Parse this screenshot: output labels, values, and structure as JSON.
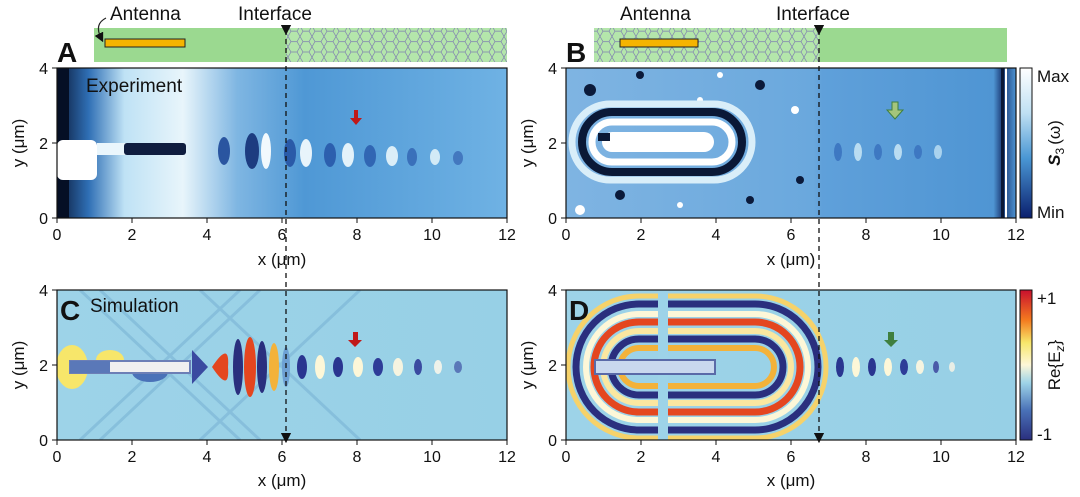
{
  "figure": {
    "panels": {
      "A": {
        "letter": "A",
        "title": "Experiment",
        "xlabel": "x (μm)",
        "ylabel": "y (μm)",
        "xticks": [
          "0",
          "2",
          "4",
          "6",
          "8",
          "10",
          "12"
        ],
        "yticks": [
          "0",
          "2",
          "4"
        ]
      },
      "B": {
        "letter": "B",
        "title": "",
        "xlabel": "x (μm)",
        "ylabel": "y (μm)",
        "xticks": [
          "0",
          "2",
          "4",
          "6",
          "8",
          "10",
          "12"
        ],
        "yticks": [
          "0",
          "2",
          "4"
        ]
      },
      "C": {
        "letter": "C",
        "title": "Simulation",
        "xlabel": "x (μm)",
        "ylabel": "y (μm)",
        "xticks": [
          "0",
          "2",
          "4",
          "6",
          "8",
          "10",
          "12"
        ],
        "yticks": [
          "0",
          "2",
          "4"
        ]
      },
      "D": {
        "letter": "D",
        "title": "",
        "xlabel": "x (μm)",
        "ylabel": "y (μm)",
        "xticks": [
          "0",
          "2",
          "4",
          "6",
          "8",
          "10",
          "12"
        ],
        "yticks": [
          "0",
          "2",
          "4"
        ]
      }
    },
    "schematic": {
      "antenna_label": "Antenna",
      "interface_label": "Interface"
    },
    "colorbars": {
      "top": {
        "max_label": "Max",
        "min_label": "Min",
        "quantity": "S",
        "subscript": "3",
        "suffix": "(ω)"
      },
      "bottom": {
        "max_label": "+1",
        "min_label": "-1",
        "quantity": "Re{E",
        "subscript": "z",
        "suffix": "}"
      }
    },
    "arrow_colors": {
      "red": "#c01818",
      "green": "#3f7f3f"
    },
    "schematic_colors": {
      "plain": "#9bd990",
      "hex": "#b4e6ab",
      "antenna": "#f5b400"
    }
  }
}
